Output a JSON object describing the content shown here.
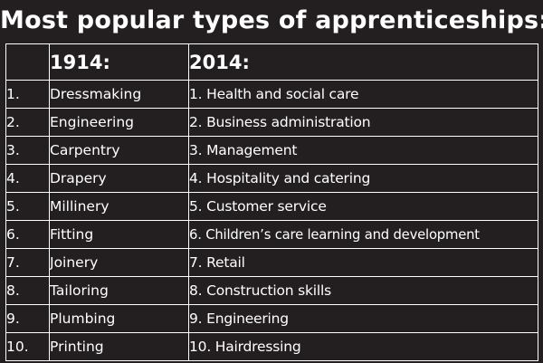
{
  "title": "Most popular types of apprenticeships:",
  "table": {
    "headers": [
      "",
      "1914:",
      "2014:"
    ],
    "rows": [
      {
        "num": "1.",
        "y1914": "Dressmaking",
        "y2014": "1. Health and social care"
      },
      {
        "num": "2.",
        "y1914": "Engineering",
        "y2014": "2. Business administration"
      },
      {
        "num": "3.",
        "y1914": "Carpentry",
        "y2014": "3. Management"
      },
      {
        "num": "4.",
        "y1914": "Drapery",
        "y2014": "4. Hospitality and catering"
      },
      {
        "num": "5.",
        "y1914": "Millinery",
        "y2014": "5. Customer service"
      },
      {
        "num": "6.",
        "y1914": "Fitting",
        "y2014": "6. Children’s care learning and development"
      },
      {
        "num": "7.",
        "y1914": "Joinery",
        "y2014": "7. Retail"
      },
      {
        "num": "8.",
        "y1914": "Tailoring",
        "y2014": "8. Construction skills"
      },
      {
        "num": "9.",
        "y1914": "Plumbing",
        "y2014": "9. Engineering"
      },
      {
        "num": "10.",
        "y1914": "Printing",
        "y2014": "10. Hairdressing"
      }
    ]
  },
  "colors": {
    "background": "#231f20",
    "text": "#ffffff",
    "border": "#ffffff"
  }
}
